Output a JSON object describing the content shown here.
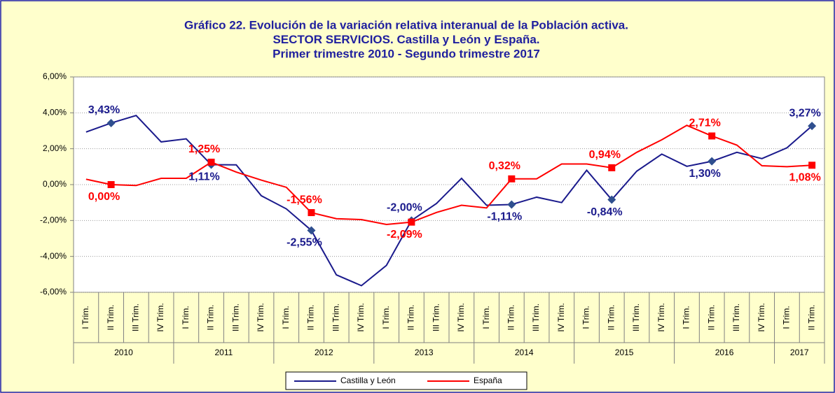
{
  "chart_data": {
    "type": "line",
    "title": [
      "Gráfico 22. Evolución de la variación relativa interanual  de la Población activa.",
      "SECTOR SERVICIOS. Castilla y León y España.",
      "Primer trimestre 2010 - Segundo trimestre 2017"
    ],
    "categories": [
      "I Trim.",
      "II Trim.",
      "III Trim.",
      "IV Trim.",
      "I Trim.",
      "II Trim.",
      "III Trim.",
      "IV Trim.",
      "I Trim.",
      "II Trim.",
      "III Trim.",
      "IV Trim.",
      "I Trim.",
      "II Trim.",
      "III Trim.",
      "IV Trim.",
      "I Trim.",
      "II Trim.",
      "III Trim.",
      "IV Trim.",
      "I Trim.",
      "II Trim.",
      "III Trim.",
      "IV Trim.",
      "I Trim.",
      "II Trim.",
      "III Trim.",
      "IV Trim.",
      "I Trim.",
      "II Trim."
    ],
    "groups": [
      {
        "label": "2010",
        "size": 4
      },
      {
        "label": "2011",
        "size": 4
      },
      {
        "label": "2012",
        "size": 4
      },
      {
        "label": "2013",
        "size": 4
      },
      {
        "label": "2014",
        "size": 4
      },
      {
        "label": "2015",
        "size": 4
      },
      {
        "label": "2016",
        "size": 4
      },
      {
        "label": "2017",
        "size": 2
      }
    ],
    "series": [
      {
        "name": "Castilla y León",
        "color": "#1a1a8c",
        "marker": "diamond",
        "values": [
          2.93,
          3.43,
          3.85,
          2.38,
          2.55,
          1.11,
          1.1,
          -0.62,
          -1.35,
          -2.55,
          -5.03,
          -5.63,
          -4.5,
          -2.0,
          -1.05,
          0.35,
          -1.15,
          -1.11,
          -0.7,
          -1.0,
          0.8,
          -0.84,
          0.75,
          1.7,
          1.02,
          1.3,
          1.8,
          1.45,
          2.05,
          3.27
        ],
        "value_labels": [
          null,
          "3,43%",
          null,
          null,
          null,
          "1,11%",
          null,
          null,
          null,
          "-2,55%",
          null,
          null,
          null,
          "-2,00%",
          null,
          null,
          null,
          "-1,11%",
          null,
          null,
          null,
          "-0,84%",
          null,
          null,
          null,
          "1,30%",
          null,
          null,
          null,
          "3,27%"
        ]
      },
      {
        "name": "España",
        "color": "#ff0000",
        "marker": "square",
        "values": [
          0.3,
          0.0,
          -0.05,
          0.35,
          0.35,
          1.25,
          0.7,
          0.25,
          -0.15,
          -1.56,
          -1.9,
          -1.95,
          -2.22,
          -2.09,
          -1.55,
          -1.15,
          -1.3,
          0.32,
          0.32,
          1.15,
          1.15,
          0.94,
          1.8,
          2.5,
          3.3,
          2.71,
          2.2,
          1.05,
          1.0,
          1.08
        ],
        "value_labels": [
          null,
          "0,00%",
          null,
          null,
          null,
          "1,25%",
          null,
          null,
          null,
          "-1,56%",
          null,
          null,
          null,
          "-2,09%",
          null,
          null,
          null,
          "0,32%",
          null,
          null,
          null,
          "0,94%",
          null,
          null,
          null,
          "2,71%",
          null,
          null,
          null,
          "1,08%"
        ]
      }
    ],
    "ylim": [
      -6,
      6
    ],
    "yticks": [
      {
        "value": -6,
        "label": "-6,00%"
      },
      {
        "value": -4,
        "label": "-4,00%"
      },
      {
        "value": -2,
        "label": "-2,00%"
      },
      {
        "value": 0,
        "label": "0,00%"
      },
      {
        "value": 2,
        "label": "2,00%"
      },
      {
        "value": 4,
        "label": "4,00%"
      },
      {
        "value": 6,
        "label": "6,00%"
      }
    ],
    "grid": true,
    "legend": "bottom"
  }
}
